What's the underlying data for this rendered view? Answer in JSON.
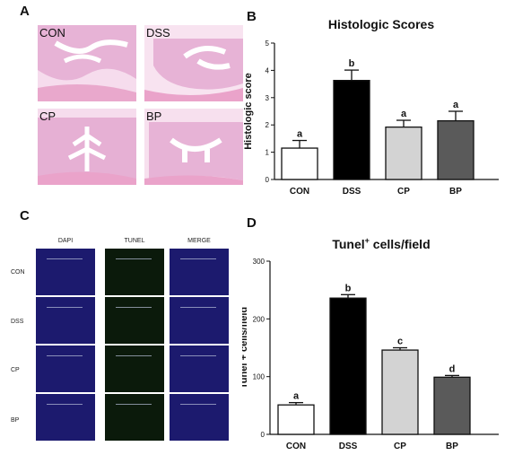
{
  "panels": {
    "A": {
      "letter": "A",
      "images": [
        {
          "label": "CON"
        },
        {
          "label": "DSS"
        },
        {
          "label": "CP"
        },
        {
          "label": "BP"
        }
      ]
    },
    "B": {
      "letter": "B"
    },
    "C": {
      "letter": "C",
      "columns": [
        "DAPI",
        "TUNEL",
        "MERGE"
      ],
      "rows": [
        "CON",
        "DSS",
        "CP",
        "BP"
      ]
    },
    "D": {
      "letter": "D"
    }
  },
  "colors": {
    "CON": "#ffffff",
    "DSS": "#000000",
    "CP": "#d3d3d3",
    "BP": "#5a5a5a",
    "dapi": "#1c1a6e",
    "tunel": "#0b1a0b",
    "tissue": "#e8b2d8"
  },
  "chart_data": [
    {
      "type": "bar",
      "title": "Histologic Scores",
      "ylabel": "Histologic score",
      "categories": [
        "CON",
        "DSS",
        "CP",
        "BP"
      ],
      "values": [
        1.15,
        3.63,
        1.92,
        2.15
      ],
      "errors": [
        0.28,
        0.38,
        0.25,
        0.35
      ],
      "significance": [
        "a",
        "b",
        "a",
        "a"
      ],
      "ylim": [
        0,
        5
      ],
      "yticks": [
        0,
        1,
        2,
        3,
        4,
        5
      ]
    },
    {
      "type": "bar",
      "title_main": "Tunel",
      "title_sup": "+",
      "title_rest": " cells/field",
      "ylabel": "Tunel + cells/field",
      "categories": [
        "CON",
        "DSS",
        "CP",
        "BP"
      ],
      "values": [
        51,
        236,
        146,
        99
      ],
      "errors": [
        4,
        6,
        4,
        3
      ],
      "significance": [
        "a",
        "b",
        "c",
        "d"
      ],
      "ylim": [
        0,
        300
      ],
      "yticks": [
        0,
        100,
        200,
        300
      ]
    }
  ]
}
